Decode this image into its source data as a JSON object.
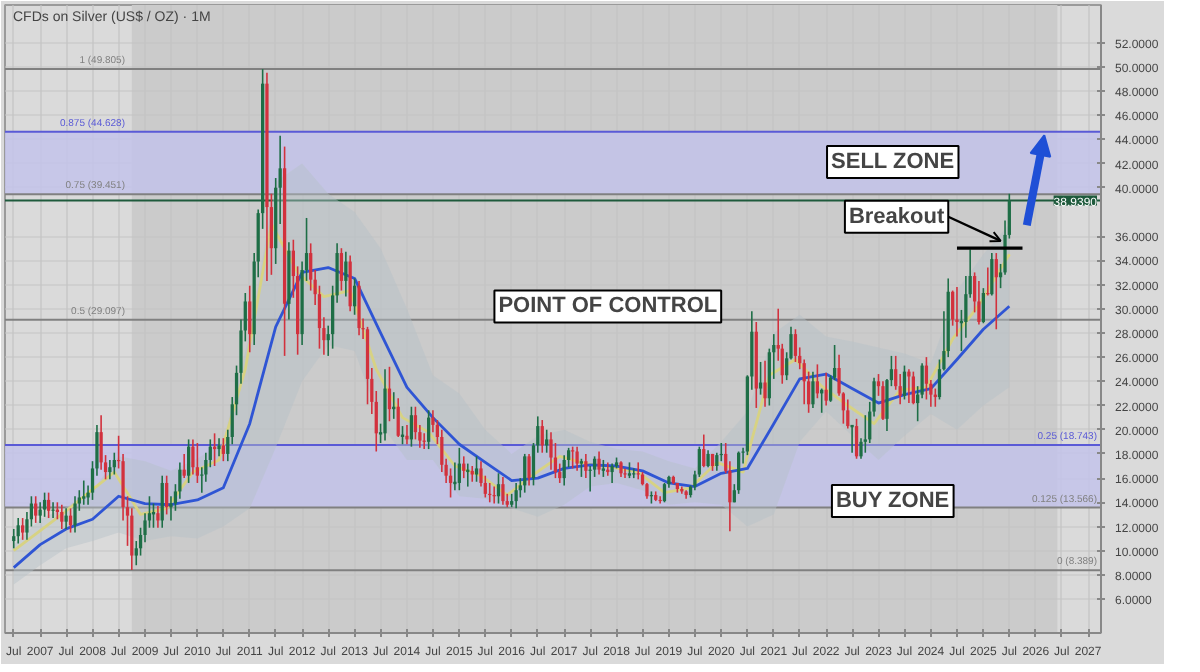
{
  "chart_data": {
    "type": "candlestick",
    "title": "CFDs on Silver (US$ / OZ) · 1M",
    "x": [
      "2006-07",
      "2006-08",
      "2006-09",
      "2006-10",
      "2006-11",
      "2006-12",
      "2007-01",
      "2007-02",
      "2007-03",
      "2007-04",
      "2007-05",
      "2007-06",
      "2007-07",
      "2007-08",
      "2007-09",
      "2007-10",
      "2007-11",
      "2007-12",
      "2008-01",
      "2008-02",
      "2008-03",
      "2008-04",
      "2008-05",
      "2008-06",
      "2008-07",
      "2008-08",
      "2008-09",
      "2008-10",
      "2008-11",
      "2008-12",
      "2009-01",
      "2009-02",
      "2009-03",
      "2009-04",
      "2009-05",
      "2009-06",
      "2009-07",
      "2009-08",
      "2009-09",
      "2009-10",
      "2009-11",
      "2009-12",
      "2010-01",
      "2010-02",
      "2010-03",
      "2010-04",
      "2010-05",
      "2010-06",
      "2010-07",
      "2010-08",
      "2010-09",
      "2010-10",
      "2010-11",
      "2010-12",
      "2011-01",
      "2011-02",
      "2011-03",
      "2011-04",
      "2011-05",
      "2011-06",
      "2011-07",
      "2011-08",
      "2011-09",
      "2011-10",
      "2011-11",
      "2011-12",
      "2012-01",
      "2012-02",
      "2012-03",
      "2012-04",
      "2012-05",
      "2012-06",
      "2012-07",
      "2012-08",
      "2012-09",
      "2012-10",
      "2012-11",
      "2012-12",
      "2013-01",
      "2013-02",
      "2013-03",
      "2013-04",
      "2013-05",
      "2013-06",
      "2013-07",
      "2013-08",
      "2013-09",
      "2013-10",
      "2013-11",
      "2013-12",
      "2014-01",
      "2014-02",
      "2014-03",
      "2014-04",
      "2014-05",
      "2014-06",
      "2014-07",
      "2014-08",
      "2014-09",
      "2014-10",
      "2014-11",
      "2014-12",
      "2015-01",
      "2015-02",
      "2015-03",
      "2015-04",
      "2015-05",
      "2015-06",
      "2015-07",
      "2015-08",
      "2015-09",
      "2015-10",
      "2015-11",
      "2015-12",
      "2016-01",
      "2016-02",
      "2016-03",
      "2016-04",
      "2016-05",
      "2016-06",
      "2016-07",
      "2016-08",
      "2016-09",
      "2016-10",
      "2016-11",
      "2016-12",
      "2017-01",
      "2017-02",
      "2017-03",
      "2017-04",
      "2017-05",
      "2017-06",
      "2017-07",
      "2017-08",
      "2017-09",
      "2017-10",
      "2017-11",
      "2017-12",
      "2018-01",
      "2018-02",
      "2018-03",
      "2018-04",
      "2018-05",
      "2018-06",
      "2018-07",
      "2018-08",
      "2018-09",
      "2018-10",
      "2018-11",
      "2018-12",
      "2019-01",
      "2019-02",
      "2019-03",
      "2019-04",
      "2019-05",
      "2019-06",
      "2019-07",
      "2019-08",
      "2019-09",
      "2019-10",
      "2019-11",
      "2019-12",
      "2020-01",
      "2020-02",
      "2020-03",
      "2020-04",
      "2020-05",
      "2020-06",
      "2020-07",
      "2020-08",
      "2020-09",
      "2020-10",
      "2020-11",
      "2020-12",
      "2021-01",
      "2021-02",
      "2021-03",
      "2021-04",
      "2021-05",
      "2021-06",
      "2021-07",
      "2021-08",
      "2021-09",
      "2021-10",
      "2021-11",
      "2021-12",
      "2022-01",
      "2022-02",
      "2022-03",
      "2022-04",
      "2022-05",
      "2022-06",
      "2022-07",
      "2022-08",
      "2022-09",
      "2022-10",
      "2022-11",
      "2022-12",
      "2023-01",
      "2023-02",
      "2023-03",
      "2023-04",
      "2023-05",
      "2023-06",
      "2023-07",
      "2023-08",
      "2023-09",
      "2023-10",
      "2023-11",
      "2023-12",
      "2024-01",
      "2024-02",
      "2024-03",
      "2024-04",
      "2024-05",
      "2024-06",
      "2024-07",
      "2024-08",
      "2024-09",
      "2024-10",
      "2024-11",
      "2024-12",
      "2025-01",
      "2025-02",
      "2025-03",
      "2025-04",
      "2025-05",
      "2025-06",
      "2025-07"
    ],
    "ohlc": [
      [
        10.8,
        11.8,
        10.2,
        11.2
      ],
      [
        11.2,
        12.7,
        10.6,
        12.1
      ],
      [
        12.1,
        12.7,
        10.9,
        11.5
      ],
      [
        11.5,
        13.2,
        10.9,
        12.6
      ],
      [
        12.6,
        14.5,
        12.0,
        13.9
      ],
      [
        13.9,
        14.5,
        12.3,
        12.9
      ],
      [
        12.9,
        14.0,
        12.3,
        13.4
      ],
      [
        13.4,
        14.8,
        12.8,
        14.2
      ],
      [
        14.2,
        14.8,
        12.7,
        13.3
      ],
      [
        13.3,
        14.0,
        12.7,
        13.4
      ],
      [
        13.4,
        14.0,
        12.6,
        13.2
      ],
      [
        13.2,
        13.8,
        11.8,
        12.4
      ],
      [
        12.4,
        13.5,
        11.8,
        12.9
      ],
      [
        12.9,
        13.5,
        11.5,
        12.1
      ],
      [
        12.1,
        14.5,
        11.5,
        13.9
      ],
      [
        13.9,
        15.0,
        13.3,
        14.4
      ],
      [
        14.4,
        15.8,
        13.8,
        14.4
      ],
      [
        14.4,
        15.4,
        13.8,
        14.8
      ],
      [
        14.8,
        17.4,
        14.2,
        16.8
      ],
      [
        16.8,
        20.4,
        16.2,
        19.8
      ],
      [
        19.8,
        21.2,
        16.7,
        17.3
      ],
      [
        17.3,
        17.9,
        15.9,
        16.5
      ],
      [
        16.5,
        17.5,
        15.9,
        16.9
      ],
      [
        16.9,
        18.1,
        16.3,
        17.5
      ],
      [
        17.5,
        19.5,
        16.8,
        17.4
      ],
      [
        17.4,
        18.0,
        12.5,
        13.6
      ],
      [
        13.6,
        14.5,
        10.4,
        12.9
      ],
      [
        12.9,
        13.5,
        8.4,
        9.6
      ],
      [
        9.6,
        10.8,
        8.8,
        10.2
      ],
      [
        10.2,
        11.9,
        9.6,
        11.3
      ],
      [
        11.3,
        13.1,
        10.7,
        12.5
      ],
      [
        12.5,
        14.5,
        11.9,
        13.1
      ],
      [
        13.1,
        13.9,
        11.9,
        13.1
      ],
      [
        13.1,
        13.7,
        11.9,
        12.5
      ],
      [
        12.5,
        16.2,
        11.9,
        15.6
      ],
      [
        15.6,
        16.2,
        13.0,
        13.6
      ],
      [
        13.6,
        14.5,
        12.5,
        13.9
      ],
      [
        13.9,
        15.5,
        13.3,
        14.9
      ],
      [
        14.9,
        17.3,
        14.3,
        16.7
      ],
      [
        16.7,
        18.0,
        16.0,
        16.2
      ],
      [
        16.2,
        19.2,
        15.6,
        18.6
      ],
      [
        18.6,
        19.2,
        16.3,
        16.9
      ],
      [
        16.9,
        18.9,
        15.6,
        16.2
      ],
      [
        16.2,
        16.9,
        14.8,
        16.3
      ],
      [
        16.3,
        18.1,
        15.7,
        17.5
      ],
      [
        17.5,
        19.2,
        16.9,
        18.6
      ],
      [
        18.6,
        19.7,
        17.0,
        18.4
      ],
      [
        18.4,
        19.3,
        17.8,
        18.7
      ],
      [
        18.7,
        19.3,
        17.4,
        18.0
      ],
      [
        18.0,
        20.0,
        17.4,
        19.4
      ],
      [
        19.4,
        22.7,
        18.8,
        22.1
      ],
      [
        22.1,
        25.3,
        21.2,
        24.7
      ],
      [
        24.7,
        29.1,
        23.8,
        28.2
      ],
      [
        28.2,
        31.3,
        27.3,
        30.6
      ],
      [
        30.6,
        31.9,
        26.4,
        27.9
      ],
      [
        27.9,
        34.6,
        27.0,
        33.9
      ],
      [
        33.9,
        38.2,
        32.6,
        37.9
      ],
      [
        37.9,
        49.8,
        36.6,
        48.6
      ],
      [
        48.6,
        49.5,
        32.3,
        38.4
      ],
      [
        38.4,
        39.5,
        32.8,
        35.0
      ],
      [
        35.0,
        40.8,
        33.7,
        40.0
      ],
      [
        40.0,
        44.3,
        37.0,
        41.6
      ],
      [
        41.6,
        43.4,
        26.1,
        30.4
      ],
      [
        30.4,
        35.5,
        29.1,
        34.8
      ],
      [
        34.8,
        35.7,
        30.9,
        32.7
      ],
      [
        32.7,
        33.5,
        26.2,
        27.9
      ],
      [
        27.9,
        33.9,
        27.0,
        33.2
      ],
      [
        33.2,
        37.5,
        32.3,
        34.6
      ],
      [
        34.6,
        35.4,
        31.5,
        32.4
      ],
      [
        32.4,
        33.2,
        30.3,
        31.2
      ],
      [
        31.2,
        31.9,
        26.7,
        28.4
      ],
      [
        28.4,
        29.3,
        26.2,
        27.4
      ],
      [
        27.4,
        28.6,
        26.1,
        27.9
      ],
      [
        27.9,
        31.9,
        26.7,
        31.1
      ],
      [
        31.1,
        35.4,
        30.5,
        34.6
      ],
      [
        34.6,
        35.0,
        31.5,
        32.3
      ],
      [
        32.3,
        34.7,
        31.0,
        33.9
      ],
      [
        33.9,
        34.4,
        29.8,
        30.2
      ],
      [
        30.2,
        32.5,
        29.5,
        31.9
      ],
      [
        31.9,
        32.3,
        27.8,
        28.4
      ],
      [
        28.4,
        29.2,
        27.5,
        28.3
      ],
      [
        28.3,
        28.5,
        22.1,
        24.2
      ],
      [
        24.2,
        25.1,
        21.3,
        22.3
      ],
      [
        22.3,
        23.2,
        18.2,
        19.7
      ],
      [
        19.7,
        20.5,
        18.9,
        19.7
      ],
      [
        19.7,
        25.0,
        19.1,
        23.4
      ],
      [
        23.4,
        25.2,
        20.7,
        21.7
      ],
      [
        21.7,
        23.1,
        20.9,
        21.9
      ],
      [
        21.9,
        22.6,
        19.4,
        19.5
      ],
      [
        19.5,
        20.3,
        18.8,
        19.5
      ],
      [
        19.5,
        20.4,
        18.8,
        19.2
      ],
      [
        19.2,
        21.9,
        18.6,
        21.2
      ],
      [
        21.2,
        21.9,
        19.2,
        19.8
      ],
      [
        19.8,
        20.4,
        18.5,
        19.1
      ],
      [
        19.1,
        19.7,
        18.4,
        19.0
      ],
      [
        19.0,
        21.6,
        18.4,
        21.0
      ],
      [
        21.0,
        21.6,
        19.8,
        20.4
      ],
      [
        20.4,
        20.8,
        18.8,
        19.4
      ],
      [
        19.4,
        20.0,
        16.5,
        17.1
      ],
      [
        17.1,
        17.6,
        15.6,
        16.2
      ],
      [
        16.2,
        16.8,
        14.4,
        15.6
      ],
      [
        15.6,
        17.3,
        15.0,
        15.6
      ],
      [
        15.6,
        18.5,
        15.0,
        17.2
      ],
      [
        17.2,
        17.8,
        16.0,
        16.6
      ],
      [
        16.6,
        17.2,
        15.3,
        16.6
      ],
      [
        16.6,
        17.0,
        15.7,
        16.3
      ],
      [
        16.3,
        17.8,
        15.7,
        16.8
      ],
      [
        16.8,
        17.4,
        15.3,
        15.6
      ],
      [
        15.6,
        16.2,
        14.4,
        14.7
      ],
      [
        14.7,
        15.6,
        14.0,
        14.6
      ],
      [
        14.6,
        15.3,
        13.9,
        14.5
      ],
      [
        14.5,
        16.4,
        13.9,
        15.5
      ],
      [
        15.5,
        16.1,
        13.8,
        14.1
      ],
      [
        14.1,
        14.7,
        13.6,
        13.8
      ],
      [
        13.8,
        14.7,
        13.6,
        14.1
      ],
      [
        14.1,
        15.6,
        13.5,
        15.0
      ],
      [
        15.0,
        16.0,
        14.4,
        15.4
      ],
      [
        15.4,
        18.0,
        14.8,
        17.8
      ],
      [
        17.8,
        18.0,
        15.4,
        16.0
      ],
      [
        16.0,
        18.9,
        15.4,
        18.7
      ],
      [
        18.7,
        21.1,
        18.1,
        20.3
      ],
      [
        20.3,
        20.8,
        18.1,
        18.7
      ],
      [
        18.7,
        20.0,
        18.1,
        19.2
      ],
      [
        19.2,
        19.8,
        16.7,
        17.7
      ],
      [
        17.7,
        18.9,
        16.0,
        16.5
      ],
      [
        16.5,
        17.2,
        15.6,
        16.0
      ],
      [
        16.0,
        17.9,
        15.4,
        17.5
      ],
      [
        17.5,
        18.5,
        16.9,
        18.3
      ],
      [
        18.3,
        18.6,
        16.8,
        18.2
      ],
      [
        18.2,
        18.6,
        16.6,
        17.2
      ],
      [
        17.2,
        17.6,
        16.1,
        17.4
      ],
      [
        17.4,
        18.0,
        16.0,
        16.6
      ],
      [
        16.6,
        17.0,
        14.9,
        16.7
      ],
      [
        16.7,
        17.8,
        16.1,
        17.6
      ],
      [
        17.6,
        18.2,
        16.3,
        16.7
      ],
      [
        16.7,
        17.5,
        16.1,
        16.7
      ],
      [
        16.7,
        17.3,
        16.2,
        16.5
      ],
      [
        16.5,
        17.2,
        15.6,
        17.0
      ],
      [
        17.0,
        17.7,
        16.8,
        17.3
      ],
      [
        17.3,
        17.4,
        16.1,
        16.4
      ],
      [
        16.4,
        16.8,
        16.0,
        16.3
      ],
      [
        16.3,
        17.3,
        16.0,
        16.3
      ],
      [
        16.3,
        16.8,
        16.0,
        16.4
      ],
      [
        16.4,
        17.3,
        15.9,
        16.3
      ],
      [
        16.3,
        16.5,
        15.4,
        15.5
      ],
      [
        15.5,
        15.6,
        14.3,
        14.5
      ],
      [
        14.5,
        14.9,
        13.9,
        14.6
      ],
      [
        14.6,
        14.9,
        14.1,
        14.2
      ],
      [
        14.2,
        14.5,
        13.9,
        14.1
      ],
      [
        14.1,
        15.6,
        14.0,
        15.5
      ],
      [
        15.5,
        16.2,
        15.2,
        16.1
      ],
      [
        16.1,
        16.2,
        15.5,
        15.6
      ],
      [
        15.6,
        15.6,
        14.8,
        15.1
      ],
      [
        15.1,
        15.3,
        14.7,
        14.9
      ],
      [
        14.9,
        15.0,
        14.3,
        14.6
      ],
      [
        14.6,
        15.4,
        14.4,
        15.3
      ],
      [
        15.3,
        16.6,
        15.0,
        16.3
      ],
      [
        16.3,
        18.6,
        16.1,
        18.4
      ],
      [
        18.4,
        19.6,
        16.9,
        17.0
      ],
      [
        17.0,
        18.3,
        16.9,
        18.0
      ],
      [
        18.0,
        18.0,
        16.6,
        17.0
      ],
      [
        17.0,
        18.1,
        16.6,
        17.9
      ],
      [
        17.9,
        18.9,
        17.4,
        18.0
      ],
      [
        18.0,
        18.9,
        16.4,
        16.6
      ],
      [
        16.6,
        17.4,
        11.6,
        14.0
      ],
      [
        14.0,
        15.5,
        14.0,
        15.0
      ],
      [
        15.0,
        18.2,
        14.7,
        18.1
      ],
      [
        18.1,
        18.5,
        17.2,
        18.2
      ],
      [
        18.2,
        24.5,
        17.9,
        24.4
      ],
      [
        24.4,
        29.8,
        23.3,
        28.1
      ],
      [
        28.1,
        28.9,
        21.8,
        23.4
      ],
      [
        23.4,
        25.6,
        22.9,
        23.9
      ],
      [
        23.9,
        25.7,
        21.9,
        22.6
      ],
      [
        22.6,
        26.7,
        22.0,
        26.4
      ],
      [
        26.4,
        27.9,
        24.2,
        27.0
      ],
      [
        27.0,
        30.0,
        25.7,
        26.7
      ],
      [
        26.7,
        27.1,
        23.8,
        24.5
      ],
      [
        24.5,
        26.4,
        24.1,
        25.9
      ],
      [
        25.9,
        28.5,
        25.8,
        27.9
      ],
      [
        27.9,
        28.3,
        25.6,
        26.1
      ],
      [
        26.1,
        26.8,
        25.0,
        25.5
      ],
      [
        25.5,
        25.8,
        22.1,
        24.0
      ],
      [
        24.0,
        24.8,
        21.4,
        22.1
      ],
      [
        22.1,
        24.8,
        21.8,
        24.0
      ],
      [
        24.0,
        25.4,
        22.6,
        23.0
      ],
      [
        23.0,
        23.4,
        21.4,
        23.3
      ],
      [
        23.3,
        24.7,
        22.0,
        22.4
      ],
      [
        22.4,
        24.5,
        22.3,
        24.3
      ],
      [
        24.3,
        27.0,
        24.1,
        25.1
      ],
      [
        25.1,
        26.2,
        22.8,
        23.0
      ],
      [
        23.0,
        23.1,
        20.5,
        21.6
      ],
      [
        21.6,
        22.5,
        20.1,
        20.3
      ],
      [
        20.3,
        20.4,
        18.1,
        20.3
      ],
      [
        20.3,
        20.9,
        17.6,
        17.8
      ],
      [
        17.8,
        19.3,
        17.6,
        19.0
      ],
      [
        19.0,
        21.2,
        18.1,
        19.2
      ],
      [
        19.2,
        22.3,
        18.9,
        21.5
      ],
      [
        21.5,
        24.3,
        21.1,
        24.0
      ],
      [
        24.0,
        24.6,
        22.8,
        23.6
      ],
      [
        23.6,
        24.0,
        20.8,
        20.9
      ],
      [
        20.9,
        24.2,
        19.9,
        24.1
      ],
      [
        24.1,
        26.1,
        23.6,
        25.0
      ],
      [
        25.0,
        26.1,
        23.3,
        23.6
      ],
      [
        23.6,
        24.6,
        22.1,
        22.8
      ],
      [
        22.8,
        25.3,
        22.5,
        24.8
      ],
      [
        24.8,
        25.0,
        22.2,
        24.4
      ],
      [
        24.4,
        24.8,
        22.1,
        22.2
      ],
      [
        22.2,
        23.6,
        20.7,
        22.9
      ],
      [
        22.9,
        25.5,
        22.6,
        25.3
      ],
      [
        25.3,
        26.0,
        22.5,
        23.8
      ],
      [
        23.8,
        24.1,
        21.9,
        22.9
      ],
      [
        22.9,
        23.4,
        21.9,
        22.7
      ],
      [
        22.7,
        25.8,
        22.5,
        25.0
      ],
      [
        25.0,
        29.8,
        24.9,
        26.5
      ],
      [
        26.5,
        32.5,
        26.0,
        31.4
      ],
      [
        31.4,
        31.5,
        28.6,
        29.1
      ],
      [
        29.1,
        31.8,
        27.7,
        28.9
      ],
      [
        28.9,
        29.9,
        26.5,
        28.9
      ],
      [
        28.9,
        32.7,
        27.6,
        31.2
      ],
      [
        31.2,
        34.9,
        30.9,
        32.7
      ],
      [
        32.7,
        33.0,
        29.7,
        30.6
      ],
      [
        30.6,
        32.3,
        28.7,
        28.9
      ],
      [
        28.9,
        31.7,
        28.8,
        31.3
      ],
      [
        31.3,
        33.4,
        31.1,
        31.2
      ],
      [
        31.2,
        34.6,
        31.1,
        34.1
      ],
      [
        34.1,
        34.6,
        28.3,
        32.6
      ],
      [
        32.6,
        33.7,
        31.7,
        33.0
      ],
      [
        33.0,
        37.3,
        32.8,
        36.1
      ],
      [
        36.1,
        39.5,
        35.8,
        38.9
      ]
    ],
    "series": [
      {
        "type": "line",
        "color": "#f2e14c",
        "x": [
          "2006-07",
          "2007-06",
          "2008-06",
          "2008-12",
          "2009-06",
          "2009-12",
          "2010-06",
          "2010-12",
          "2011-06",
          "2011-12",
          "2012-06",
          "2012-12",
          "2013-06",
          "2013-12",
          "2014-06",
          "2014-12",
          "2015-06",
          "2015-12",
          "2016-06",
          "2016-12",
          "2017-06",
          "2017-12",
          "2018-06",
          "2018-12",
          "2019-06",
          "2019-12",
          "2020-06",
          "2020-12",
          "2021-06",
          "2021-12",
          "2022-06",
          "2022-12",
          "2023-06",
          "2023-12",
          "2024-06",
          "2024-12",
          "2025-07"
        ],
        "values": [
          10.0,
          13.0,
          16.5,
          13.0,
          13.5,
          16.5,
          17.5,
          25.0,
          37.0,
          33.0,
          31.0,
          31.5,
          25.0,
          21.0,
          19.8,
          17.0,
          16.2,
          14.6,
          16.3,
          17.8,
          17.2,
          16.9,
          16.5,
          14.8,
          15.2,
          17.3,
          16.5,
          24.5,
          25.8,
          23.6,
          22.0,
          20.5,
          23.3,
          23.5,
          27.5,
          30.3,
          34.5
        ]
      },
      {
        "type": "line",
        "color": "#2f55d4",
        "x": [
          "2006-07",
          "2007-01",
          "2007-07",
          "2008-01",
          "2008-07",
          "2009-01",
          "2009-07",
          "2010-01",
          "2010-07",
          "2011-01",
          "2011-07",
          "2012-01",
          "2012-07",
          "2013-01",
          "2013-07",
          "2014-01",
          "2014-07",
          "2015-01",
          "2015-07",
          "2016-01",
          "2016-07",
          "2017-01",
          "2017-07",
          "2018-01",
          "2018-07",
          "2019-01",
          "2019-07",
          "2020-01",
          "2020-07",
          "2021-01",
          "2021-07",
          "2022-01",
          "2022-07",
          "2023-01",
          "2023-07",
          "2024-01",
          "2024-07",
          "2025-01",
          "2025-07"
        ],
        "values": [
          8.6,
          10.5,
          11.8,
          12.6,
          14.5,
          13.9,
          13.8,
          14.2,
          15.2,
          20.5,
          28.5,
          33.0,
          33.4,
          32.5,
          28.0,
          23.5,
          21.0,
          18.8,
          17.3,
          15.8,
          16.0,
          16.8,
          17.1,
          17.0,
          16.6,
          15.6,
          15.3,
          16.4,
          16.8,
          20.5,
          24.2,
          24.6,
          23.4,
          22.2,
          22.9,
          23.4,
          25.8,
          28.3,
          30.2
        ],
        "lower": [
          7.2,
          8.8,
          10.2,
          10.8,
          11.5,
          10.8,
          11.2,
          11.0,
          12.0,
          13.5,
          18.5,
          24.0,
          27.0,
          26.5,
          20.5,
          17.5,
          17.5,
          14.5,
          14.3,
          13.5,
          12.8,
          13.8,
          15.3,
          15.6,
          15.0,
          13.8,
          14.0,
          13.8,
          12.0,
          13.0,
          19.0,
          21.5,
          19.5,
          17.5,
          19.5,
          21.3,
          20.0,
          22.0,
          23.5
        ],
        "upper": [
          10.5,
          12.6,
          13.6,
          15.0,
          17.8,
          17.4,
          16.6,
          17.6,
          19.0,
          28.0,
          40.5,
          42.0,
          39.5,
          38.0,
          35.0,
          30.0,
          24.5,
          23.0,
          20.0,
          18.0,
          19.5,
          20.0,
          19.0,
          18.4,
          18.2,
          17.4,
          16.8,
          19.0,
          21.5,
          28.0,
          29.5,
          27.7,
          27.3,
          26.8,
          26.3,
          25.5,
          31.5,
          34.5,
          37.0
        ]
      }
    ],
    "ref_lines": [
      {
        "axis": "y",
        "value": 49.805,
        "label": "1 (49.805)",
        "color": "#808080"
      },
      {
        "axis": "y",
        "value": 44.628,
        "label": "0.875 (44.628)",
        "color": "#5a5ad6"
      },
      {
        "axis": "y",
        "value": 39.451,
        "label": "0.75 (39.451)",
        "color": "#808080"
      },
      {
        "axis": "y",
        "value": 29.097,
        "label": "0.5 (29.097)",
        "color": "#808080"
      },
      {
        "axis": "y",
        "value": 18.743,
        "label": "0.25 (18.743)",
        "color": "#5a5ad6"
      },
      {
        "axis": "y",
        "value": 13.566,
        "label": "0.125 (13.566)",
        "color": "#808080"
      },
      {
        "axis": "y",
        "value": 8.389,
        "label": "0 (8.389)",
        "color": "#808080"
      },
      {
        "axis": "y",
        "value": 38.939,
        "label": "38.9390",
        "color": "#1e5a3c"
      }
    ],
    "bands": [
      {
        "axis": "x",
        "from": "2008-10",
        "to": "2026-06",
        "color": "#cbcbcb"
      },
      {
        "axis": "y",
        "from": 39.451,
        "to": 44.628,
        "color": "#c3c3ea"
      },
      {
        "axis": "y",
        "from": 13.566,
        "to": 18.743,
        "color": "#c3c3ea"
      }
    ],
    "annotations": [
      "SELL ZONE",
      "POINT OF CONTROL",
      "BUY ZONE",
      {
        "text": "Breakout",
        "x": "2025-06",
        "y": 35
      }
    ],
    "xlim": [
      "2006-05",
      "2027-04"
    ],
    "ylim": [
      3.2,
      55.1
    ],
    "xticks": [
      {
        "value": "2006-07",
        "label": "Jul"
      },
      {
        "value": "2007-01",
        "label": "2007"
      },
      {
        "value": "2007-07",
        "label": "Jul"
      },
      {
        "value": "2008-01",
        "label": "2008"
      },
      {
        "value": "2008-07",
        "label": "Jul"
      },
      {
        "value": "2009-01",
        "label": "2009"
      },
      {
        "value": "2009-07",
        "label": "Jul"
      },
      {
        "value": "2010-01",
        "label": "2010"
      },
      {
        "value": "2010-07",
        "label": "Jul"
      },
      {
        "value": "2011-01",
        "label": "2011"
      },
      {
        "value": "2011-07",
        "label": "Jul"
      },
      {
        "value": "2012-01",
        "label": "2012"
      },
      {
        "value": "2012-07",
        "label": "Jul"
      },
      {
        "value": "2013-01",
        "label": "2013"
      },
      {
        "value": "2013-07",
        "label": "Jul"
      },
      {
        "value": "2014-01",
        "label": "2014"
      },
      {
        "value": "2014-07",
        "label": "Jul"
      },
      {
        "value": "2015-01",
        "label": "2015"
      },
      {
        "value": "2015-07",
        "label": "Jul"
      },
      {
        "value": "2016-01",
        "label": "2016"
      },
      {
        "value": "2016-07",
        "label": "Jul"
      },
      {
        "value": "2017-01",
        "label": "2017"
      },
      {
        "value": "2017-07",
        "label": "Jul"
      },
      {
        "value": "2018-01",
        "label": "2018"
      },
      {
        "value": "2018-07",
        "label": "Jul"
      },
      {
        "value": "2019-01",
        "label": "2019"
      },
      {
        "value": "2019-07",
        "label": "Jul"
      },
      {
        "value": "2020-01",
        "label": "2020"
      },
      {
        "value": "2020-07",
        "label": "Jul"
      },
      {
        "value": "2021-01",
        "label": "2021"
      },
      {
        "value": "2021-07",
        "label": "Jul"
      },
      {
        "value": "2022-01",
        "label": "2022"
      },
      {
        "value": "2022-07",
        "label": "Jul"
      },
      {
        "value": "2023-01",
        "label": "2023"
      },
      {
        "value": "2023-07",
        "label": "Jul"
      },
      {
        "value": "2024-01",
        "label": "2024"
      },
      {
        "value": "2024-07",
        "label": "Jul"
      },
      {
        "value": "2025-01",
        "label": "2025"
      },
      {
        "value": "2025-07",
        "label": "Jul"
      },
      {
        "value": "2026-01",
        "label": "2026"
      },
      {
        "value": "2026-07",
        "label": "Jul"
      },
      {
        "value": "2027-01",
        "label": "2027"
      }
    ],
    "yticks": [
      {
        "value": 6,
        "label": "6.0000"
      },
      {
        "value": 8,
        "label": "8.0000"
      },
      {
        "value": 10,
        "label": "10.0000"
      },
      {
        "value": 12,
        "label": "12.0000"
      },
      {
        "value": 14,
        "label": "14.0000"
      },
      {
        "value": 16,
        "label": "16.0000"
      },
      {
        "value": 18,
        "label": "18.0000"
      },
      {
        "value": 20,
        "label": "20.0000"
      },
      {
        "value": 22,
        "label": "22.0000"
      },
      {
        "value": 24,
        "label": "24.0000"
      },
      {
        "value": 26,
        "label": "26.0000"
      },
      {
        "value": 28,
        "label": "28.0000"
      },
      {
        "value": 30,
        "label": "30.0000"
      },
      {
        "value": 32,
        "label": "32.0000"
      },
      {
        "value": 34,
        "label": "34.0000"
      },
      {
        "value": 36,
        "label": "36.0000"
      },
      {
        "value": 40,
        "label": "40.0000"
      },
      {
        "value": 42,
        "label": "42.0000"
      },
      {
        "value": 44,
        "label": "44.0000"
      },
      {
        "value": 46,
        "label": "46.0000"
      },
      {
        "value": 48,
        "label": "48.0000"
      },
      {
        "value": 50,
        "label": "50.0000"
      },
      {
        "value": 52,
        "label": "52.0000"
      }
    ],
    "grid": true
  }
}
